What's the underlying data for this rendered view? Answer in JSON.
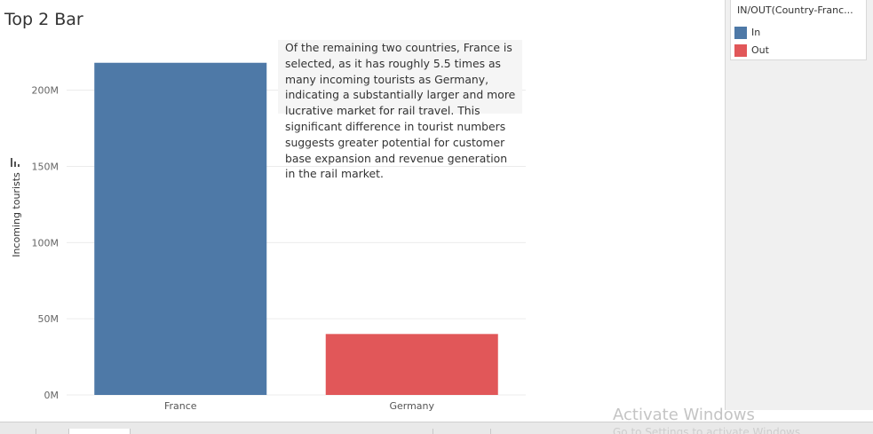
{
  "sheet": {
    "title": "Top 2 Bar"
  },
  "annotation": {
    "text": "Of the remaining two countries, France is selected, as it has roughly 5.5 times as many incoming tourists as Germany, indicating a substantially larger and more lucrative market for rail travel. This significant difference in tourist numbers suggests greater potential for customer base expansion and revenue generation in the rail market."
  },
  "legend": {
    "title": "IN/OUT(Country-Franc...",
    "items": [
      {
        "label": "In",
        "color": "#4e79a7"
      },
      {
        "label": "Out",
        "color": "#e15759"
      }
    ]
  },
  "watermark": {
    "line1": "Activate Windows",
    "line2": "Go to Settings to activate Windows."
  },
  "chart_data": {
    "type": "bar",
    "categories": [
      "France",
      "Germany"
    ],
    "values": [
      218000000,
      40000000
    ],
    "colors": [
      "#4e79a7",
      "#e15759"
    ],
    "ylabel": "Incoming tourists",
    "xlabel": "",
    "ylim": [
      0,
      226000000
    ],
    "yticks": [
      0,
      50000000,
      100000000,
      150000000,
      200000000
    ],
    "ytick_labels": [
      "0M",
      "50M",
      "100M",
      "150M",
      "200M"
    ],
    "grid": true
  }
}
